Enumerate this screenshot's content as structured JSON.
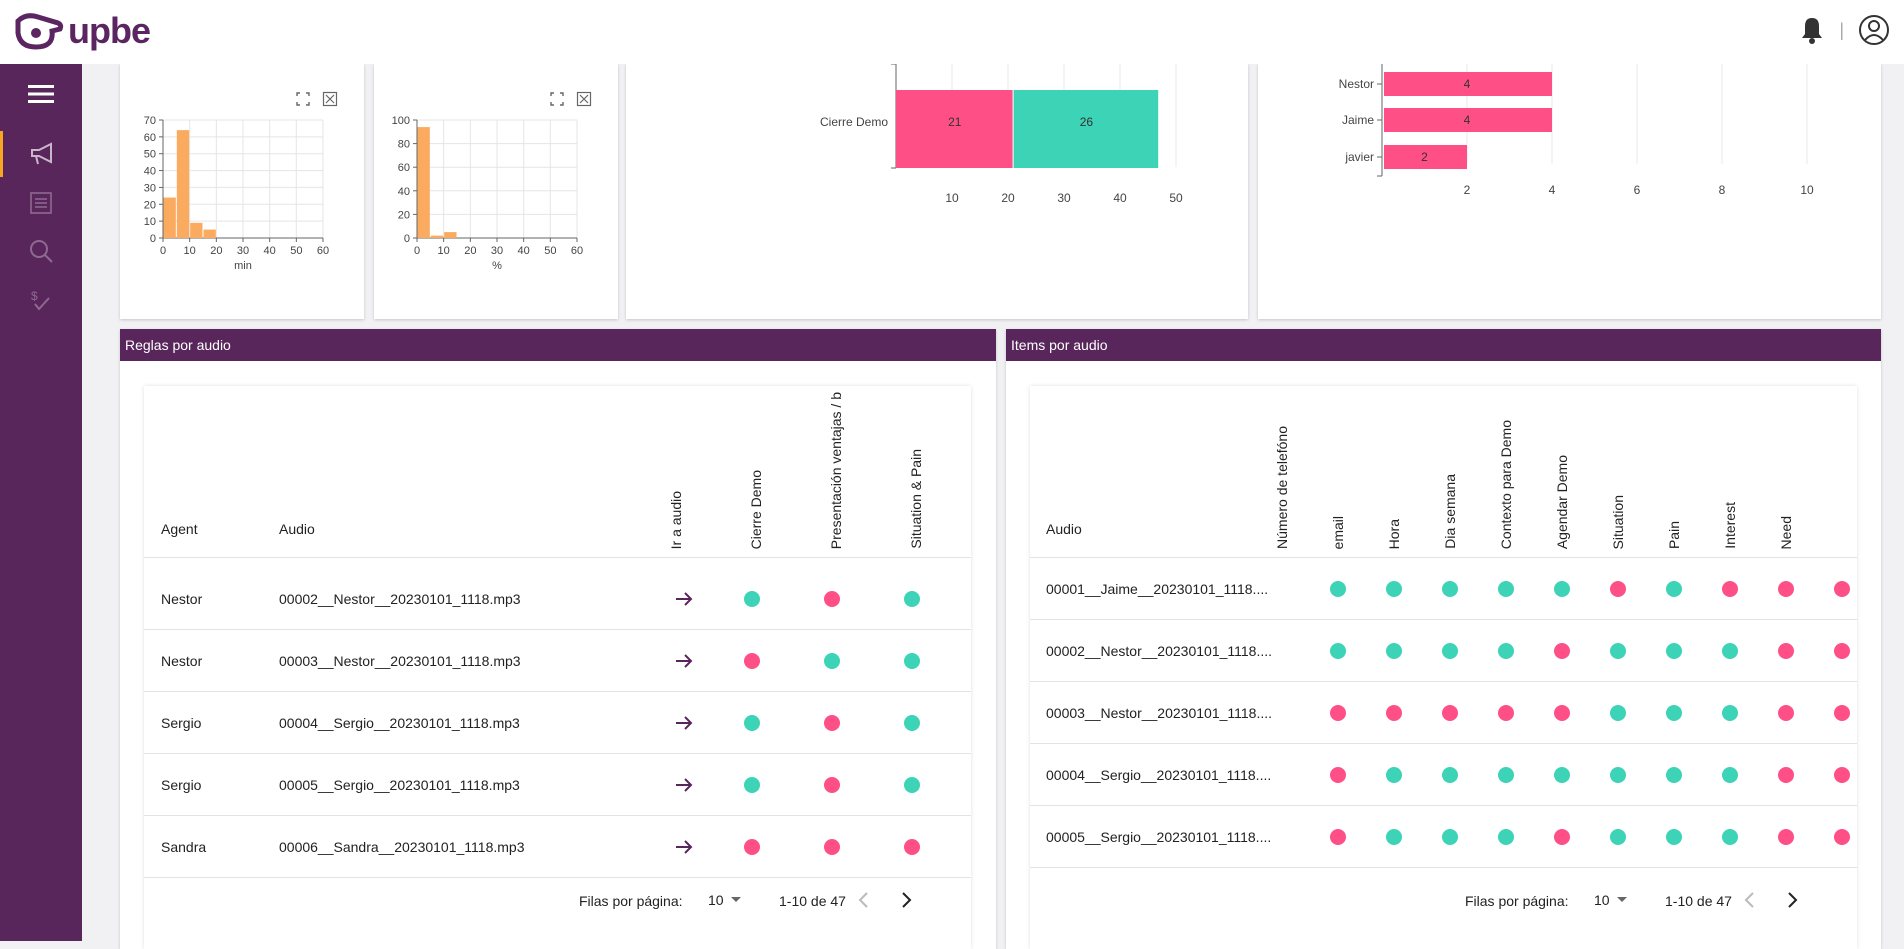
{
  "app": {
    "logo_text": "upbe"
  },
  "colors": {
    "brand": "#59265c",
    "green": "#3dd3b6",
    "pink": "#ff4f87",
    "orange": "#fbab60"
  },
  "hist1": {
    "yticks": [
      "70",
      "60",
      "50",
      "40",
      "30",
      "20",
      "10",
      "0"
    ],
    "xticks": [
      "0",
      "10",
      "20",
      "30",
      "40",
      "50",
      "60"
    ],
    "xlabel": "min"
  },
  "hist2": {
    "yticks": [
      "100",
      "80",
      "60",
      "40",
      "20",
      "0"
    ],
    "xticks": [
      "0",
      "10",
      "20",
      "30",
      "40",
      "50",
      "60"
    ],
    "xlabel": "%"
  },
  "chart_data": [
    {
      "type": "bar",
      "title": "",
      "x": [
        0,
        5,
        10,
        15,
        20,
        25,
        30,
        35,
        40,
        45,
        50,
        55
      ],
      "values": [
        24,
        64,
        9,
        5,
        0,
        0,
        0,
        0,
        0,
        0,
        0,
        0
      ],
      "xlabel": "min",
      "ylim": [
        0,
        70
      ],
      "xlim": [
        0,
        60
      ]
    },
    {
      "type": "bar",
      "title": "",
      "x": [
        0,
        5,
        10,
        15,
        20,
        25,
        30,
        35,
        40,
        45,
        50,
        55
      ],
      "values": [
        94,
        2,
        5,
        0,
        0,
        0,
        0,
        0,
        0,
        0,
        0,
        0
      ],
      "xlabel": "%",
      "ylim": [
        0,
        100
      ],
      "xlim": [
        0,
        60
      ]
    },
    {
      "type": "bar",
      "orientation": "horizontal",
      "stacked": true,
      "categories": [
        "Cierre Demo"
      ],
      "series": [
        {
          "name": "pink",
          "values": [
            21
          ]
        },
        {
          "name": "green",
          "values": [
            26
          ]
        }
      ],
      "xticks": [
        "10",
        "20",
        "30",
        "40",
        "50"
      ]
    },
    {
      "type": "bar",
      "orientation": "horizontal",
      "categories": [
        "Nestor",
        "Jaime",
        "javier"
      ],
      "values": [
        4,
        4,
        2
      ],
      "xticks": [
        "2",
        "4",
        "6",
        "8",
        "10"
      ]
    }
  ],
  "reglas": {
    "title": "Reglas por audio",
    "col_agent": "Agent",
    "col_audio": "Audio",
    "vcols": [
      "Ir a audio",
      "Cierre Demo",
      "Presentación ventajas / b",
      "Situation & Pain"
    ],
    "rows": [
      {
        "agent": "Nestor",
        "audio": "00002__Nestor__20230101_1118.mp3",
        "dots": [
          "g",
          "p",
          "g"
        ]
      },
      {
        "agent": "Nestor",
        "audio": "00003__Nestor__20230101_1118.mp3",
        "dots": [
          "p",
          "g",
          "g"
        ]
      },
      {
        "agent": "Sergio",
        "audio": "00004__Sergio__20230101_1118.mp3",
        "dots": [
          "g",
          "p",
          "g"
        ]
      },
      {
        "agent": "Sergio",
        "audio": "00005__Sergio__20230101_1118.mp3",
        "dots": [
          "g",
          "p",
          "g"
        ]
      },
      {
        "agent": "Sandra",
        "audio": "00006__Sandra__20230101_1118.mp3",
        "dots": [
          "p",
          "p",
          "p"
        ]
      }
    ],
    "rows_label": "Filas por página:",
    "rows_value": "10",
    "range": "1-10 de 47"
  },
  "items": {
    "title": "Items por audio",
    "col_audio": "Audio",
    "vcols": [
      "Número de telefóno",
      "email",
      "Hora",
      "Dia semana",
      "Contexto para Demo",
      "Agendar Demo",
      "Situation",
      "Pain",
      "Interest",
      "Need"
    ],
    "rows": [
      {
        "audio": "00001__Jaime__20230101_1118....",
        "dots": [
          "g",
          "g",
          "g",
          "g",
          "g",
          "p",
          "g",
          "p",
          "p",
          "p"
        ]
      },
      {
        "audio": "00002__Nestor__20230101_1118....",
        "dots": [
          "g",
          "g",
          "g",
          "g",
          "p",
          "g",
          "g",
          "g",
          "p",
          "p"
        ]
      },
      {
        "audio": "00003__Nestor__20230101_1118....",
        "dots": [
          "p",
          "p",
          "p",
          "p",
          "p",
          "g",
          "g",
          "g",
          "p",
          "p"
        ]
      },
      {
        "audio": "00004__Sergio__20230101_1118....",
        "dots": [
          "p",
          "g",
          "g",
          "g",
          "g",
          "g",
          "g",
          "g",
          "p",
          "p"
        ]
      },
      {
        "audio": "00005__Sergio__20230101_1118....",
        "dots": [
          "p",
          "g",
          "g",
          "g",
          "p",
          "g",
          "g",
          "g",
          "p",
          "p"
        ]
      }
    ],
    "rows_label": "Filas por página:",
    "rows_value": "10",
    "range": "1-10 de 47"
  }
}
